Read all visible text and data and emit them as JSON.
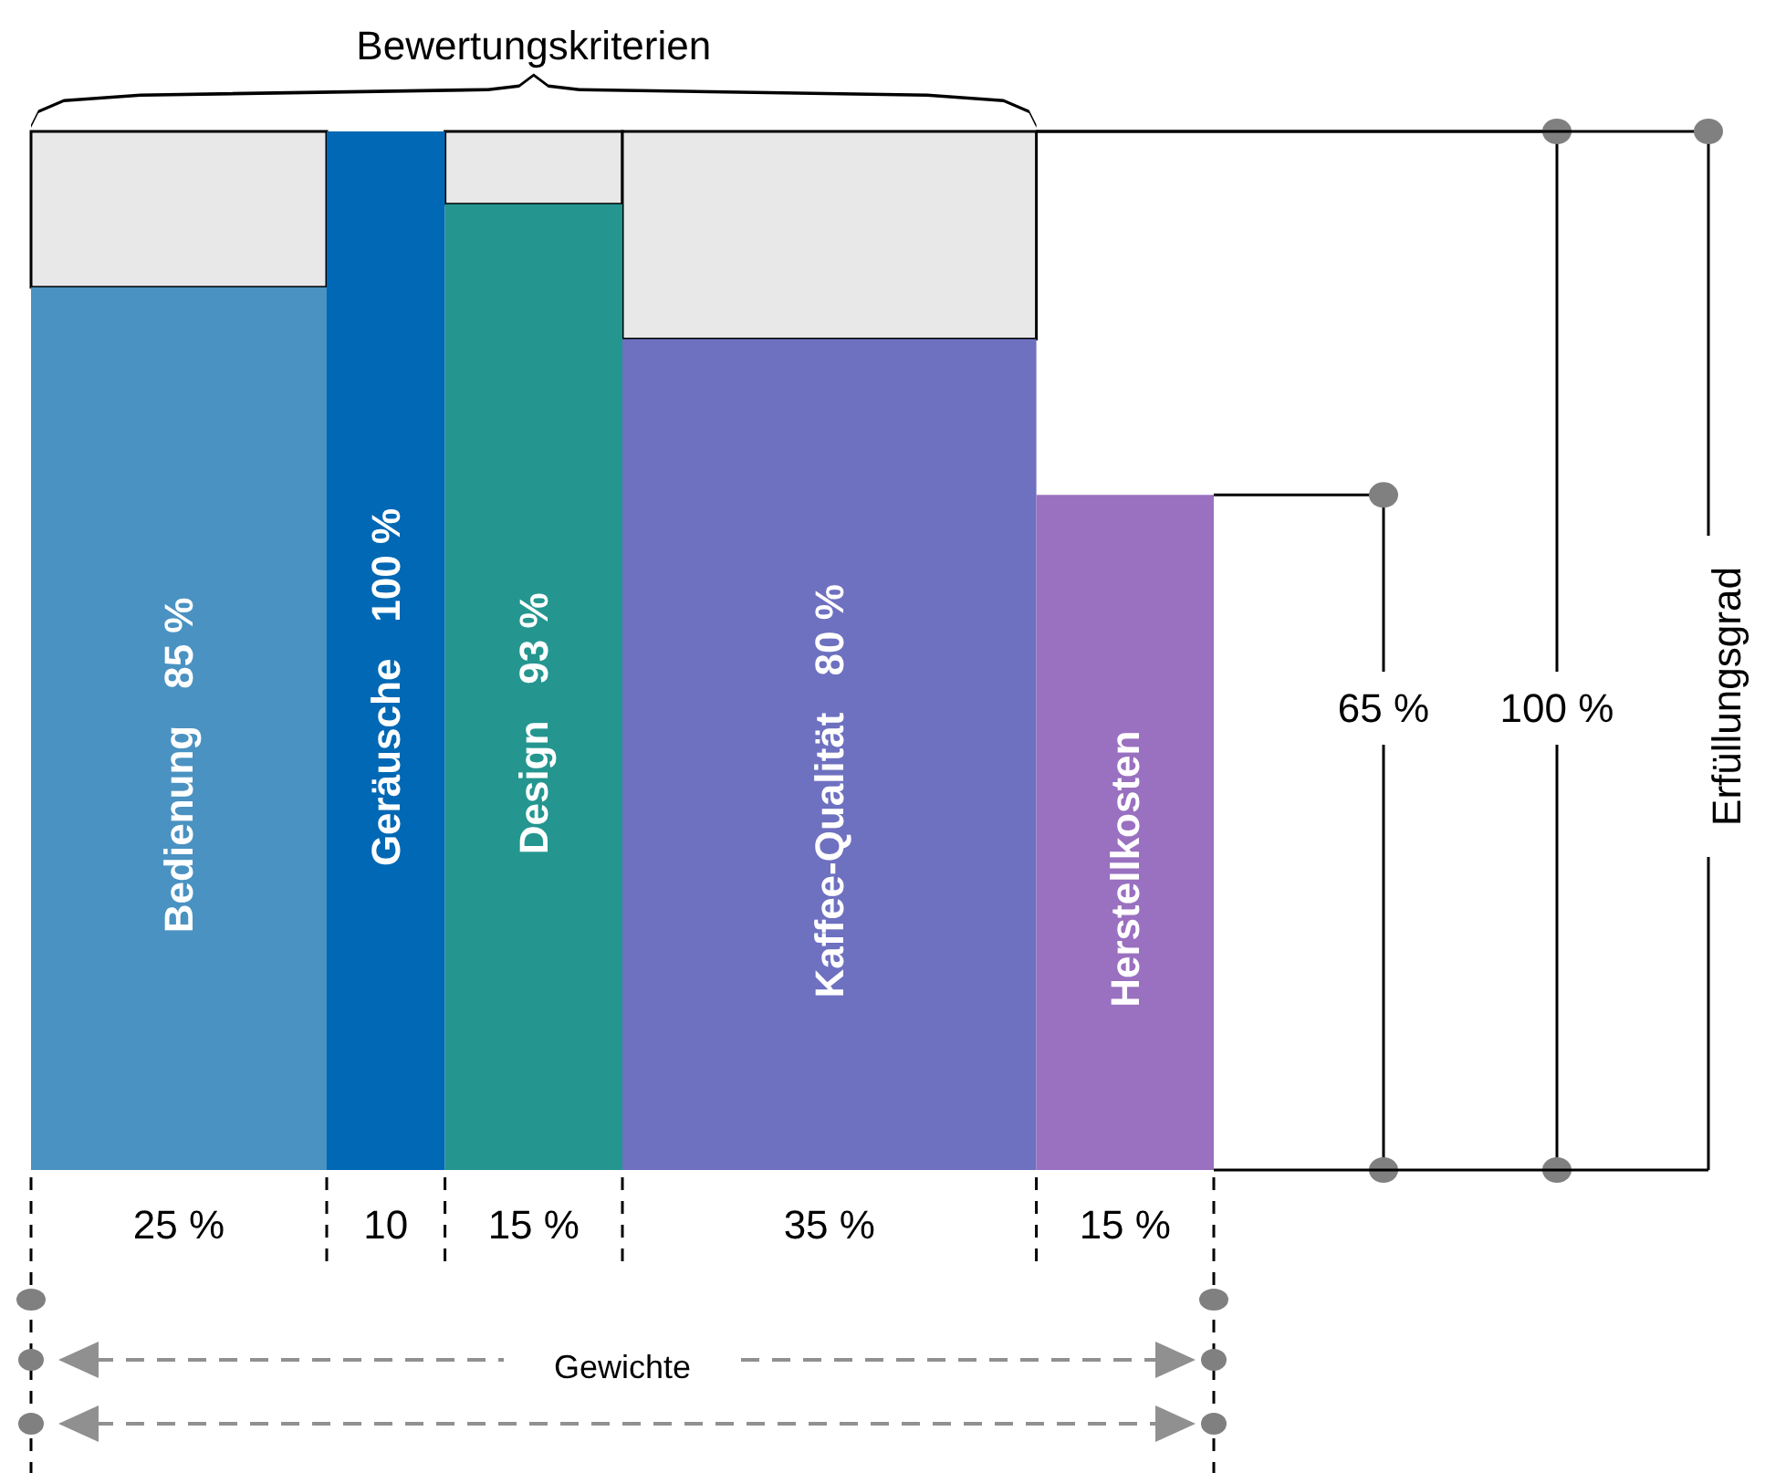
{
  "chart_data": {
    "type": "bar",
    "title": "Bewertungskriterien",
    "categories": [
      "Bedienung",
      "Geräusche",
      "Design",
      "Kaffee-Qualität",
      "Herstellkosten"
    ],
    "ylim": [
      0,
      100
    ],
    "stacked": true,
    "series": [
      {
        "colors": [
          "#4a92c2",
          "#0068b4",
          "#24968f",
          "#6e70c0",
          "#9a70c0"
        ],
        "values": [
          85,
          100,
          93,
          80,
          65
        ],
        "value_labels": [
          "85 %",
          "100 %",
          "93 %",
          "80 %",
          null
        ]
      },
      {
        "color": "#e8e8e8",
        "values": [
          15,
          null,
          7,
          20,
          null
        ]
      }
    ],
    "annotations": [
      "25 %",
      "10",
      "15 %",
      "35 %",
      "15 %",
      "Gewichte",
      "Erfüllungsgrad",
      "65 %",
      "100 %"
    ]
  }
}
